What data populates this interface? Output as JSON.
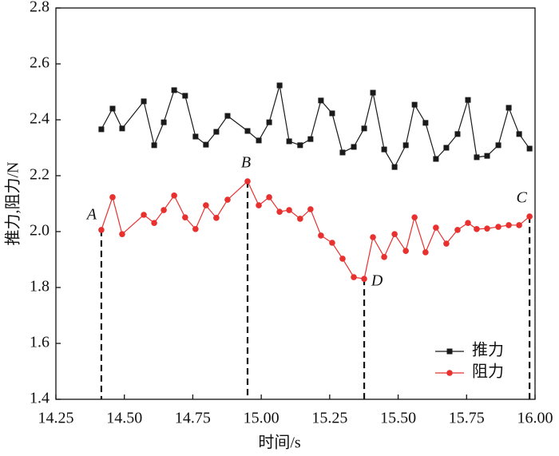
{
  "chart_data": {
    "type": "line",
    "x_label": "时间/s",
    "y_label": "推力,阻力/N",
    "x": [
      14.416,
      14.457,
      14.492,
      14.571,
      14.609,
      14.644,
      14.682,
      14.722,
      14.76,
      14.798,
      14.836,
      14.877,
      14.95,
      14.991,
      15.029,
      15.067,
      15.102,
      15.142,
      15.18,
      15.218,
      15.259,
      15.297,
      15.338,
      15.376,
      15.408,
      15.449,
      15.487,
      15.528,
      15.56,
      15.6,
      15.638,
      15.676,
      15.717,
      15.755,
      15.787,
      15.825,
      15.866,
      15.904,
      15.942,
      15.98
    ],
    "series": [
      {
        "name": "推力",
        "color": "#1a1a1a",
        "marker": "square",
        "values": [
          2.366,
          2.44,
          2.369,
          2.466,
          2.309,
          2.391,
          2.506,
          2.486,
          2.34,
          2.311,
          2.357,
          2.414,
          2.36,
          2.326,
          2.391,
          2.523,
          2.323,
          2.309,
          2.331,
          2.469,
          2.423,
          2.283,
          2.303,
          2.369,
          2.497,
          2.294,
          2.231,
          2.309,
          2.454,
          2.389,
          2.26,
          2.3,
          2.349,
          2.471,
          2.266,
          2.271,
          2.309,
          2.443,
          2.349,
          2.297
        ]
      },
      {
        "name": "阻力",
        "color": "#e8312f",
        "marker": "circle",
        "values": [
          2.006,
          2.123,
          1.991,
          2.06,
          2.031,
          2.077,
          2.129,
          2.051,
          2.009,
          2.094,
          2.049,
          2.114,
          2.18,
          2.094,
          2.123,
          2.071,
          2.077,
          2.046,
          2.08,
          1.986,
          1.96,
          1.903,
          1.837,
          1.831,
          1.98,
          1.909,
          1.991,
          1.931,
          2.051,
          1.926,
          2.014,
          1.957,
          2.006,
          2.031,
          2.009,
          2.011,
          2.017,
          2.023,
          2.023,
          2.054
        ]
      }
    ],
    "annotations": [
      {
        "text": "A",
        "x": 14.416,
        "y": 2.006
      },
      {
        "text": "B",
        "x": 14.95,
        "y": 2.18
      },
      {
        "text": "D",
        "x": 15.376,
        "y": 1.831
      },
      {
        "text": "C",
        "x": 15.98,
        "y": 2.054
      }
    ],
    "xlim": [
      14.25,
      16.0
    ],
    "xticks": [
      {
        "value": 14.25,
        "label": "14.25"
      },
      {
        "value": 14.5,
        "label": "14.50"
      },
      {
        "value": 14.75,
        "label": "14.75"
      },
      {
        "value": 15.0,
        "label": "15.00"
      },
      {
        "value": 15.25,
        "label": "15.25"
      },
      {
        "value": 15.5,
        "label": "15.50"
      },
      {
        "value": 15.75,
        "label": "15.75"
      },
      {
        "value": 16.0,
        "label": "16.00"
      }
    ],
    "ylim": [
      1.4,
      2.8
    ],
    "yticks": [
      1.4,
      1.6,
      1.8,
      {
        "value": 2.0,
        "label": "2.0"
      },
      2.2,
      2.4,
      2.6,
      2.8
    ],
    "grid": false,
    "legend": "lower right"
  }
}
